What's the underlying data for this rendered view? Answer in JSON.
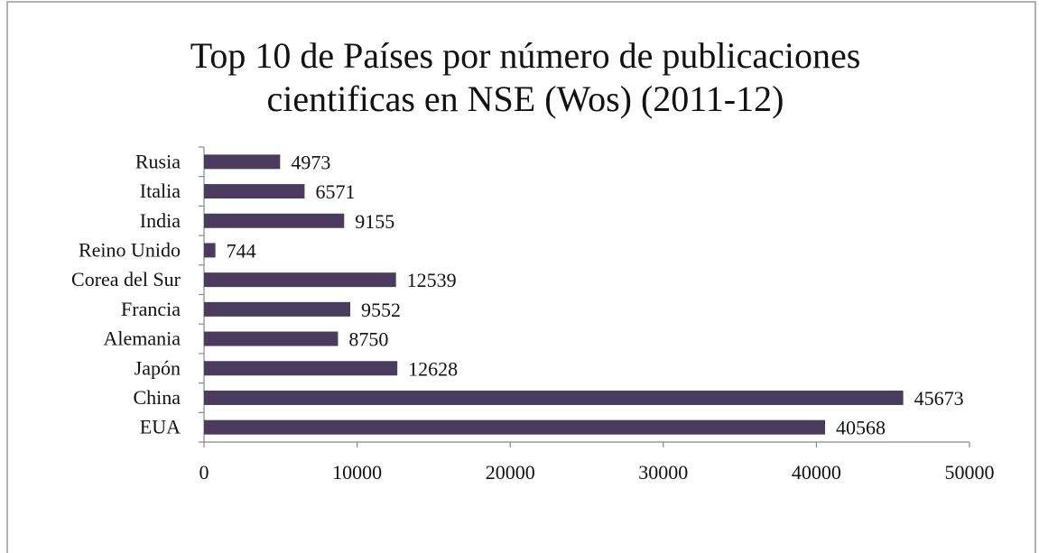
{
  "chart_data": {
    "type": "hbar",
    "title": "Top 10 de Países por número de publicaciones cientificas en NSE (Wos) (2011-12)",
    "categories": [
      "Rusia",
      "Italia",
      "India",
      "Reino Unido",
      "Corea del Sur",
      "Francia",
      "Alemania",
      "Japón",
      "China",
      "EUA"
    ],
    "values": [
      4973,
      6571,
      9155,
      744,
      12539,
      9552,
      8750,
      12628,
      45673,
      40568
    ],
    "color": "#4b3b5f",
    "xlim": [
      0,
      50000
    ],
    "xticks": [
      0,
      10000,
      20000,
      30000,
      40000,
      50000
    ],
    "grid": false
  }
}
